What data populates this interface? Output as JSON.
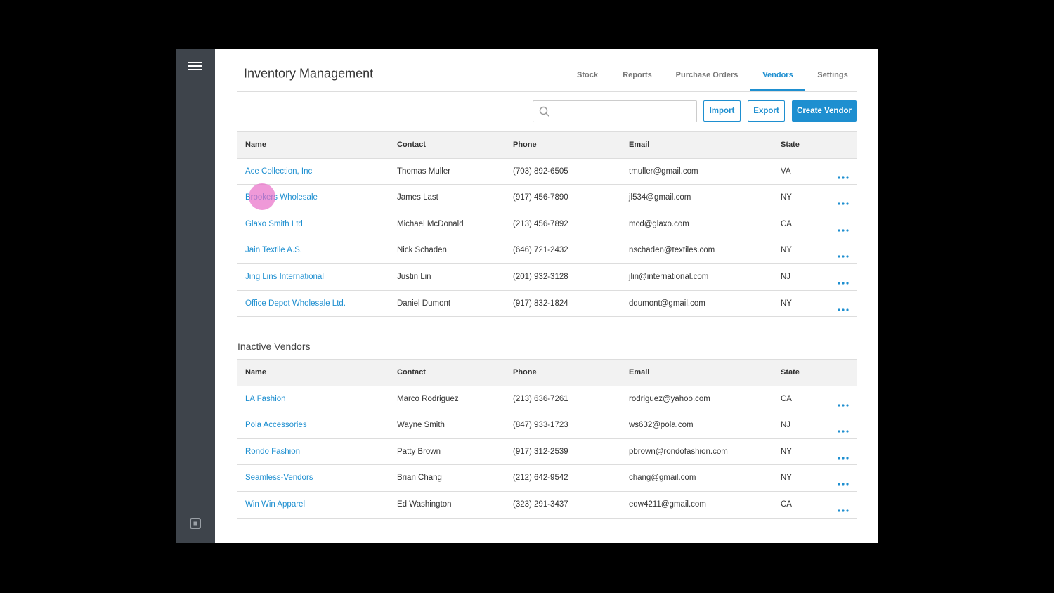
{
  "header": {
    "title": "Inventory Management",
    "nav": [
      {
        "label": "Stock"
      },
      {
        "label": "Reports"
      },
      {
        "label": "Purchase Orders"
      },
      {
        "label": "Vendors",
        "active": true
      },
      {
        "label": "Settings"
      }
    ]
  },
  "toolbar": {
    "buttons": [
      "Import",
      "Export",
      "Create Vendor"
    ]
  },
  "active_vendors": {
    "columns": [
      "Name",
      "Contact",
      "Phone",
      "Email",
      "State"
    ],
    "rows": [
      [
        "Ace Collection, Inc",
        "Thomas Muller",
        "(703) 892-6505",
        "tmuller@gmail.com",
        "VA"
      ],
      [
        "Brookers Wholesale",
        "James Last",
        "(917) 456-7890",
        "jl534@gmail.com",
        "NY"
      ],
      [
        "Glaxo Smith Ltd",
        "Michael McDonald",
        "(213) 456-7892",
        "mcd@glaxo.com",
        "CA"
      ],
      [
        "Jain Textile A.S.",
        "Nick Schaden",
        "(646) 721-2432",
        "nschaden@textiles.com",
        "NY"
      ],
      [
        "Jing Lins International",
        "Justin Lin",
        "(201) 932-3128",
        "jlin@international.com",
        "NJ"
      ],
      [
        "Office Depot Wholesale Ltd.",
        "Daniel Dumont",
        "(917) 832-1824",
        "ddumont@gmail.com",
        "NY"
      ]
    ]
  },
  "inactive_vendors": {
    "title": "Inactive Vendors",
    "columns": [
      "Name",
      "Contact",
      "Phone",
      "Email",
      "State"
    ],
    "rows": [
      [
        "LA Fashion",
        "Marco Rodriguez",
        "(213) 636-7261",
        "rodriguez@yahoo.com",
        "CA"
      ],
      [
        "Pola Accessories",
        "Wayne Smith",
        "(847) 933-1723",
        "ws632@pola.com",
        "NJ"
      ],
      [
        "Rondo Fashion",
        "Patty Brown",
        "(917) 312-2539",
        "pbrown@rondofashion.com",
        "NY"
      ],
      [
        "Seamless-Vendors",
        "Brian Chang",
        "(212) 642-9542",
        "chang@gmail.com",
        "NY"
      ],
      [
        "Win Win Apparel",
        "Ed Washington",
        "(323) 291-3437",
        "edw4211@gmail.com",
        "CA"
      ]
    ]
  }
}
